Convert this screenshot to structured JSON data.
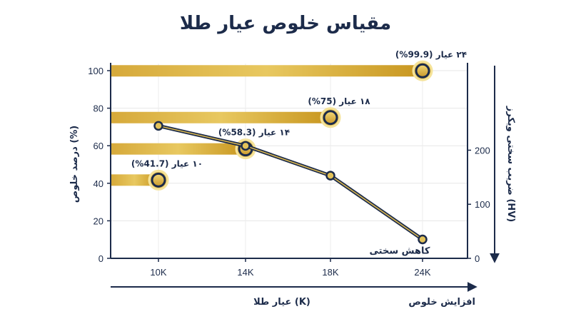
{
  "title": "مقیاس خلوص عیار طلا",
  "chart_data": {
    "type": "bar",
    "orientation": "horizontal",
    "title": "مقیاس خلوص عیار طلا",
    "xlabel": "عیار طلا (K)",
    "x_arrow_label": "افزایش خلوص",
    "ylabel_left": "درصد خلوص (%)",
    "ylabel_right": "ضریب سختی ویکرز (HV)",
    "categories": [
      "10K",
      "14K",
      "18K",
      "24K"
    ],
    "bars": [
      {
        "category": "10K",
        "value": 41.7,
        "label": "۱۰ عیار (41.7%)"
      },
      {
        "category": "14K",
        "value": 58.3,
        "label": "۱۴ عیار (58.3%)"
      },
      {
        "category": "18K",
        "value": 75,
        "label": "۱۸ عیار (75%)"
      },
      {
        "category": "24K",
        "value": 99.9,
        "label": "۲۴ عیار (99.9%)"
      }
    ],
    "left_axis": {
      "ylim": [
        0,
        100
      ],
      "ticks": [
        0,
        20,
        40,
        60,
        80,
        100
      ]
    },
    "right_axis": {
      "ylim": [
        0,
        280
      ],
      "ticks": [
        0,
        100,
        200
      ]
    },
    "line_series": {
      "axis": "right",
      "values": [
        245,
        208,
        153,
        35
      ],
      "annotation": "کاهش سختی"
    },
    "colors": {
      "navy": "#1c2b4a",
      "gold_light": "#f2dc7d",
      "gold": "#d9ad3c",
      "gold_dark": "#b88a26"
    }
  }
}
